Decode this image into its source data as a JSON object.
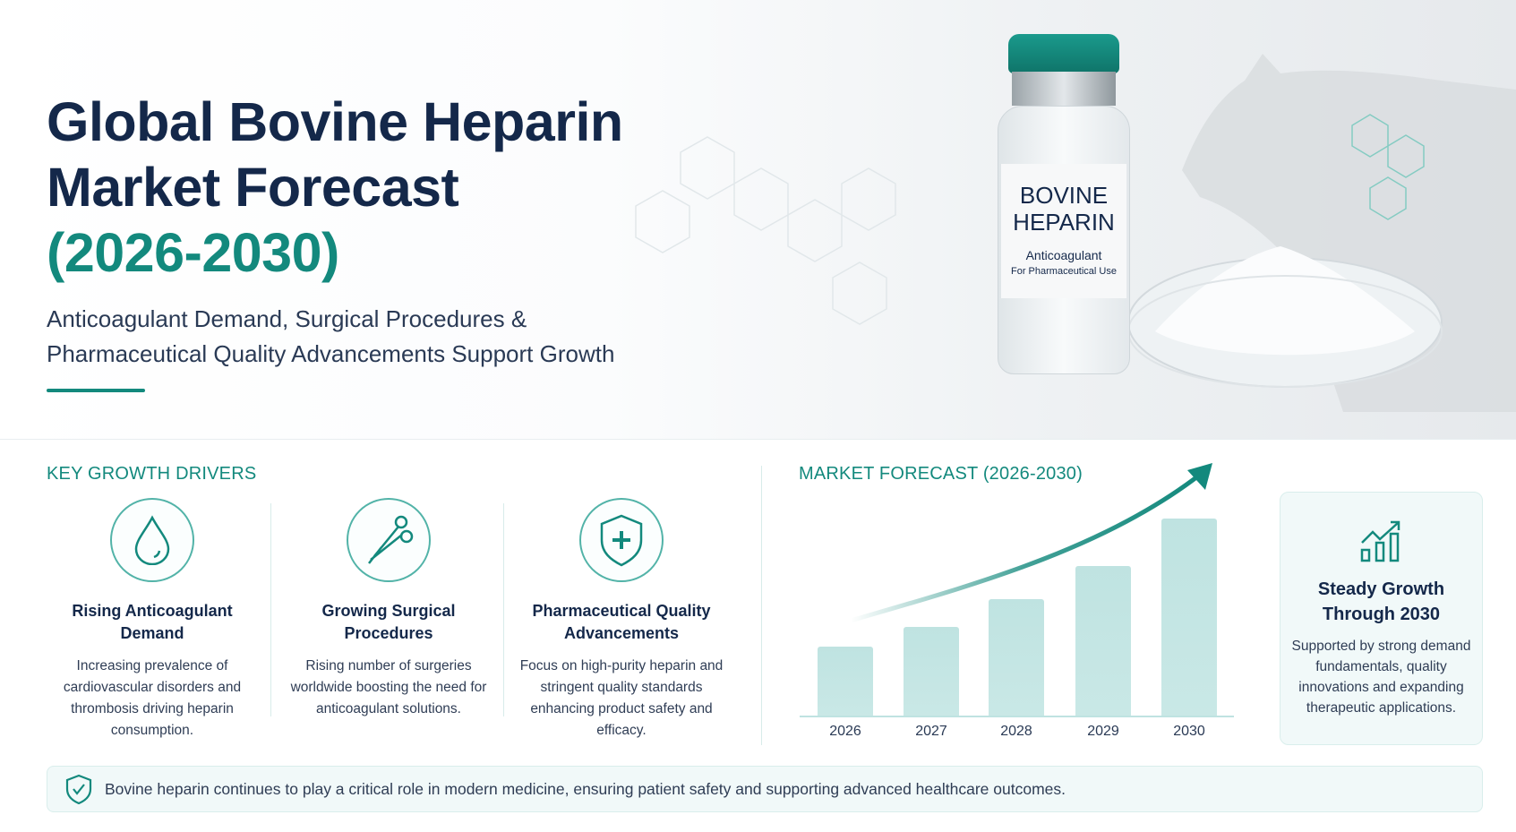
{
  "hero": {
    "title_line1": "Global Bovine Heparin",
    "title_line2": "Market Forecast",
    "title_years": "(2026-2030)",
    "subtitle_line1": "Anticoagulant Demand, Surgical Procedures &",
    "subtitle_line2": "Pharmaceutical Quality Advancements Support Growth",
    "vial_label_line1": "BOVINE",
    "vial_label_line2": "HEPARIN",
    "vial_label_line3": "Anticoagulant",
    "vial_label_line4": "For Pharmaceutical Use"
  },
  "drivers": {
    "heading": "KEY GROWTH DRIVERS",
    "items": [
      {
        "icon": "droplet-icon",
        "title": "Rising Anticoagulant Demand",
        "desc": "Increasing prevalence of cardiovascular disorders and thrombosis driving heparin consumption."
      },
      {
        "icon": "scissors-icon",
        "title": "Growing Surgical Procedures",
        "desc": "Rising number of surgeries worldwide boosting the need for anticoagulant solutions."
      },
      {
        "icon": "shield-plus-icon",
        "title": "Pharmaceutical Quality Advancements",
        "desc": "Focus on high-purity heparin and stringent quality standards enhancing product safety and efficacy."
      }
    ]
  },
  "forecast": {
    "heading": "MARKET FORECAST (2026-2030)",
    "years": [
      "2026",
      "2027",
      "2028",
      "2029",
      "2030"
    ],
    "bar_levels_pct": [
      35,
      45,
      59,
      76,
      100
    ],
    "accent_color": "#13897d",
    "bar_color": "#c4e5e3"
  },
  "card": {
    "icon": "growth-chart-icon",
    "title": "Steady Growth Through 2030",
    "desc": "Supported by strong demand fundamentals, quality innovations and expanding therapeutic applications."
  },
  "footer": {
    "icon": "shield-check-icon",
    "text": "Bovine heparin continues to play a critical role in modern medicine, ensuring patient safety and supporting advanced healthcare outcomes."
  }
}
